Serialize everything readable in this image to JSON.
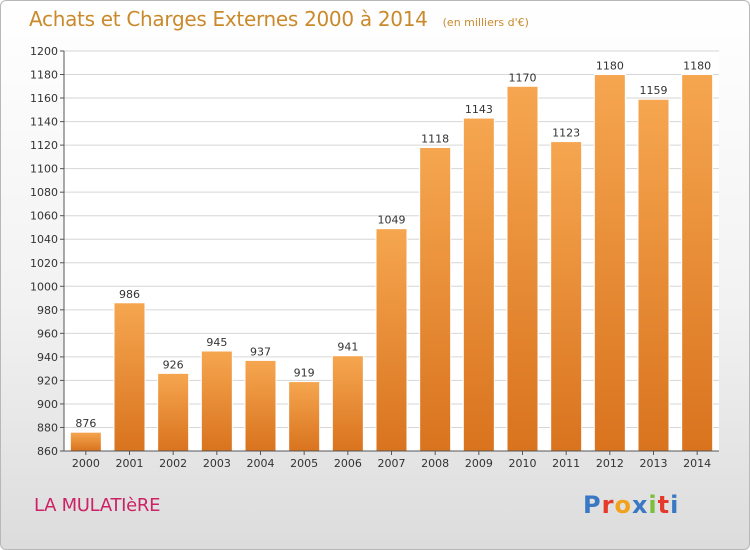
{
  "header": {
    "title": "Achats et Charges Externes 2000 à 2014",
    "subtitle": "(en milliers d'€)"
  },
  "footer": {
    "location": "LA MULATIèRE",
    "brand": "Proxiti",
    "brand_colors": [
      "#3a78c4",
      "#e6392b",
      "#f1a21c",
      "#3a78c4",
      "#7bbf3a",
      "#e6392b",
      "#3a78c4"
    ]
  },
  "colors": {
    "bar_light": "#f6a650",
    "bar_dark": "#d9731e",
    "title": "#ca8a2c",
    "location": "#cc2266"
  },
  "chart_data": {
    "type": "bar",
    "categories": [
      "2000",
      "2001",
      "2002",
      "2003",
      "2004",
      "2005",
      "2006",
      "2007",
      "2008",
      "2009",
      "2010",
      "2011",
      "2012",
      "2013",
      "2014"
    ],
    "values": [
      876,
      986,
      926,
      945,
      937,
      919,
      941,
      1049,
      1118,
      1143,
      1170,
      1123,
      1180,
      1159,
      1180
    ],
    "ylim": [
      860,
      1200
    ],
    "yticks": [
      860,
      880,
      900,
      920,
      940,
      960,
      980,
      1000,
      1020,
      1040,
      1060,
      1080,
      1100,
      1120,
      1140,
      1160,
      1180,
      1200
    ],
    "grid": true,
    "data_labels": true
  }
}
